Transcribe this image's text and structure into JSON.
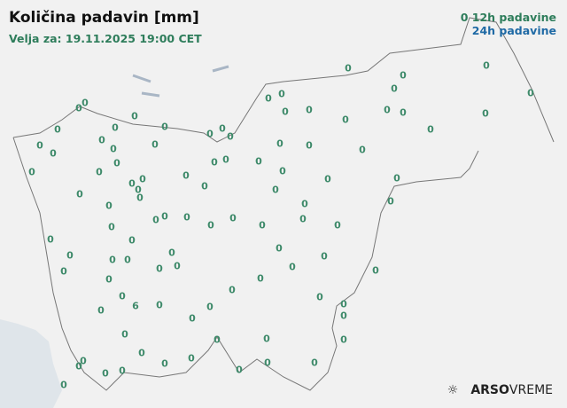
{
  "title": "Količina padavin [mm]",
  "valid": "Velja za: 19.11.2025 19:00 CET",
  "legend": {
    "h12": "12h padavine",
    "h24": "24h padavine",
    "marker": "0",
    "h12_color": "#2e7d5b",
    "h24_color": "#1f6aa5"
  },
  "logo": {
    "brand": "ARSO",
    "product": "VREME",
    "icon": "sun-rain-icon"
  },
  "stations": [
    "0",
    "0",
    "0",
    "0",
    "0",
    "0",
    "0",
    "0",
    "0",
    "0",
    "0",
    "0",
    "0",
    "0",
    "0",
    "0",
    "0",
    "0",
    "0",
    "0",
    "0",
    "0",
    "0",
    "0",
    "0",
    "0",
    "0",
    "0",
    "0",
    "0",
    "0",
    "0",
    "0",
    "0",
    "0",
    "0",
    "0",
    "0",
    "0",
    "0",
    "0",
    "0",
    "0",
    "0",
    "0",
    "0",
    "0",
    "0",
    "0",
    "0",
    "0",
    "0",
    "0",
    "0",
    "0",
    "0",
    "0",
    "0",
    "0",
    "0",
    "0",
    "0",
    "0",
    "0",
    "0",
    "0",
    "0",
    "0",
    "0",
    "0",
    "0",
    "0",
    "0",
    "0",
    "0",
    "6",
    "0",
    "0",
    "0",
    "0",
    "0",
    "0",
    "0",
    "0",
    "0",
    "0",
    "0",
    "0",
    "0",
    "0",
    "0",
    "0",
    "0",
    "0",
    "0",
    "0",
    "0",
    "0",
    "0",
    "0"
  ]
}
